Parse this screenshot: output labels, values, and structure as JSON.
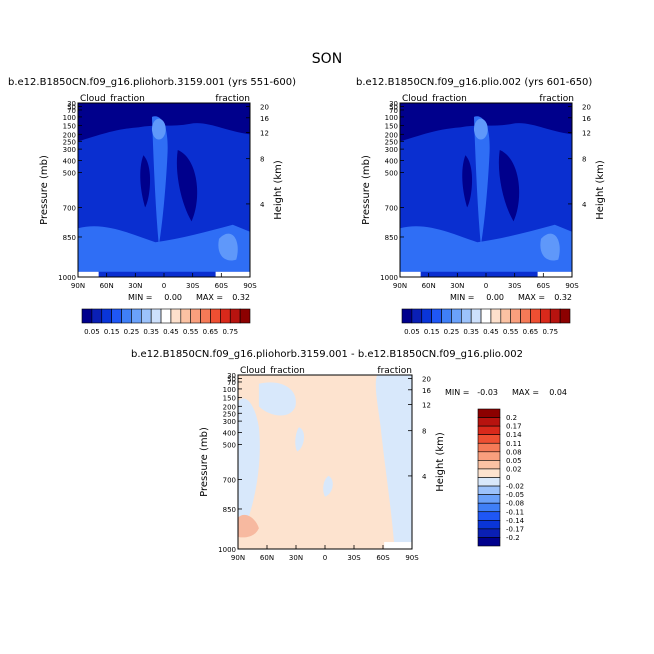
{
  "page_title": "SON",
  "colors": {
    "deep_blue": "#00008c",
    "mid_blue": "#0a2fd0",
    "light_blue": "#2f6ef5",
    "pale_blue": "#5f98fa",
    "diff_bg": "#d8e8fb",
    "diff_pos": "#fde3cf",
    "diff_strong": "#f7b9a0"
  },
  "chart_data": [
    {
      "type": "heatmap",
      "title": "b.e12.B1850CN.f09_g16.pliohorb.3159.001 (yrs 551-600)",
      "left_title": "Cloud_fraction",
      "right_title": "fraction",
      "ylabel": "Pressure (mb)",
      "y2label": "Height (km)",
      "x_ticks": [
        "90N",
        "60N",
        "30N",
        "0",
        "30S",
        "60S",
        "90S"
      ],
      "y_ticks": [
        "30",
        "50",
        "70",
        "100",
        "150",
        "200",
        "250",
        "300",
        "400",
        "500",
        "700",
        "850",
        "1000"
      ],
      "y2_ticks": [
        "20",
        "16",
        "12",
        "8",
        "4"
      ],
      "min_label": "MIN =",
      "min_value": "0.00",
      "max_label": "MAX =",
      "max_value": "0.32"
    },
    {
      "type": "heatmap",
      "title": "b.e12.B1850CN.f09_g16.plio.002 (yrs 601-650)",
      "left_title": "Cloud_fraction",
      "right_title": "fraction",
      "ylabel": "Pressure (mb)",
      "y2label": "Height (km)",
      "x_ticks": [
        "90N",
        "60N",
        "30N",
        "0",
        "30S",
        "60S",
        "90S"
      ],
      "y_ticks": [
        "30",
        "50",
        "70",
        "100",
        "150",
        "200",
        "250",
        "300",
        "400",
        "500",
        "700",
        "850",
        "1000"
      ],
      "y2_ticks": [
        "20",
        "16",
        "12",
        "8",
        "4"
      ],
      "min_label": "MIN =",
      "min_value": "0.00",
      "max_label": "MAX =",
      "max_value": "0.32"
    },
    {
      "type": "heatmap",
      "title": "b.e12.B1850CN.f09_g16.pliohorb.3159.001 - b.e12.B1850CN.f09_g16.plio.002",
      "left_title": "Cloud_fraction",
      "right_title": "fraction",
      "ylabel": "Pressure (mb)",
      "y2label": "Height (km)",
      "x_ticks": [
        "90N",
        "60N",
        "30N",
        "0",
        "30S",
        "60S",
        "90S"
      ],
      "y_ticks": [
        "30",
        "50",
        "70",
        "100",
        "150",
        "200",
        "250",
        "300",
        "400",
        "500",
        "700",
        "850",
        "1000"
      ],
      "y2_ticks": [
        "20",
        "16",
        "12",
        "8",
        "4"
      ],
      "min_label": "MIN =",
      "min_value": "-0.03",
      "max_label": "MAX =",
      "max_value": "0.04"
    }
  ],
  "colorbar_top": {
    "labels": [
      "0.05",
      "0.15",
      "0.25",
      "0.35",
      "0.45",
      "0.55",
      "0.65",
      "0.75"
    ],
    "colors": [
      "#00008c",
      "#0a1fb4",
      "#0a35d8",
      "#1f57f5",
      "#3f7ff7",
      "#6aa1fa",
      "#9cc2fb",
      "#cde0fc",
      "#ffffff",
      "#fde0cc",
      "#fbc2a3",
      "#f99f7d",
      "#f57a57",
      "#ee4f32",
      "#d9291b",
      "#b7130f",
      "#8c0000"
    ]
  },
  "colorbar_diff": {
    "labels": [
      "0.2",
      "0.17",
      "0.14",
      "0.11",
      "0.08",
      "0.05",
      "0.02",
      "0",
      "-0.02",
      "-0.05",
      "-0.08",
      "-0.11",
      "-0.14",
      "-0.17",
      "-0.2"
    ],
    "colors": [
      "#8c0000",
      "#b7130f",
      "#d9291b",
      "#ee4f32",
      "#f57a57",
      "#f99f7d",
      "#fbc2a3",
      "#fde3cf",
      "#d8e8fb",
      "#9cc2fb",
      "#6aa1fa",
      "#3f7ff7",
      "#1f57f5",
      "#0a35d8",
      "#0a1fb4",
      "#00008c"
    ]
  }
}
